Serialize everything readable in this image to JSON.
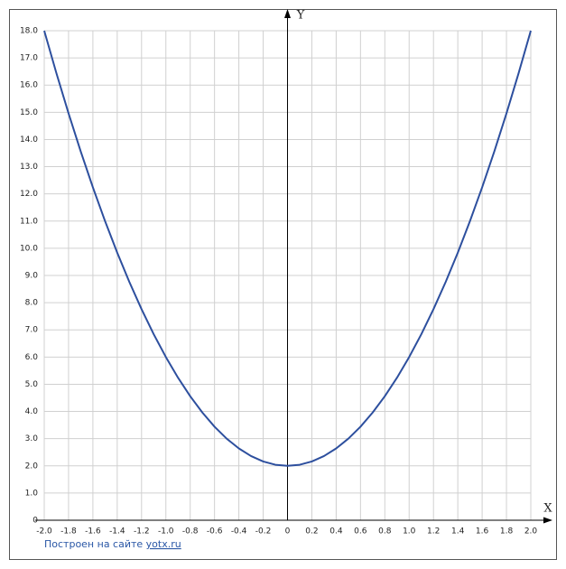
{
  "chart_data": {
    "type": "line",
    "x_label": "X",
    "y_label": "Y",
    "x": [
      -2.0,
      -1.9,
      -1.8,
      -1.7,
      -1.6,
      -1.5,
      -1.4,
      -1.3,
      -1.2,
      -1.1,
      -1.0,
      -0.9,
      -0.8,
      -0.7,
      -0.6,
      -0.5,
      -0.4,
      -0.3,
      -0.2,
      -0.1,
      0,
      0.1,
      0.2,
      0.3,
      0.4,
      0.5,
      0.6,
      0.7,
      0.8,
      0.9,
      1.0,
      1.1,
      1.2,
      1.3,
      1.4,
      1.5,
      1.6,
      1.7,
      1.8,
      1.9,
      2.0
    ],
    "series": [
      {
        "color": "#2d4f9e",
        "values": [
          18,
          16.44,
          14.96,
          13.56,
          12.24,
          11,
          9.84,
          8.76,
          7.76,
          6.84,
          6,
          5.24,
          4.56,
          3.96,
          3.44,
          3,
          2.64,
          2.36,
          2.16,
          2.04,
          2,
          2.04,
          2.16,
          2.36,
          2.64,
          3,
          3.44,
          3.96,
          4.56,
          5.24,
          6,
          6.84,
          7.76,
          8.76,
          9.84,
          11,
          12.24,
          13.56,
          14.96,
          16.44,
          18
        ]
      }
    ],
    "xlim": [
      -2,
      2
    ],
    "ylim": [
      0,
      18
    ],
    "xticks": [
      {
        "value": -2,
        "label": "-2.0"
      },
      -1.8,
      -1.6,
      -1.4,
      -1.2,
      {
        "value": -1,
        "label": "-1.0"
      },
      -0.8,
      -0.6,
      -0.4,
      -0.2,
      0,
      0.2,
      0.4,
      0.6,
      0.8,
      {
        "value": 1,
        "label": "1.0"
      },
      1.2,
      1.4,
      1.6,
      1.8,
      {
        "value": 2,
        "label": "2.0"
      }
    ],
    "yticks": [
      0,
      {
        "value": 1,
        "label": "1.0"
      },
      {
        "value": 2,
        "label": "2.0"
      },
      {
        "value": 3,
        "label": "3.0"
      },
      {
        "value": 4,
        "label": "4.0"
      },
      {
        "value": 5,
        "label": "5.0"
      },
      {
        "value": 6,
        "label": "6.0"
      },
      {
        "value": 7,
        "label": "7.0"
      },
      {
        "value": 8,
        "label": "8.0"
      },
      {
        "value": 9,
        "label": "9.0"
      },
      {
        "value": 10,
        "label": "10.0"
      },
      {
        "value": 11,
        "label": "11.0"
      },
      {
        "value": 12,
        "label": "12.0"
      },
      {
        "value": 13,
        "label": "13.0"
      },
      {
        "value": 14,
        "label": "14.0"
      },
      {
        "value": 15,
        "label": "15.0"
      },
      {
        "value": 16,
        "label": "16.0"
      },
      {
        "value": 17,
        "label": "17.0"
      },
      {
        "value": 18,
        "label": "18.0"
      }
    ],
    "grid": true
  },
  "footer": {
    "text": "Построен на сайте",
    "link": "yotx.ru"
  }
}
